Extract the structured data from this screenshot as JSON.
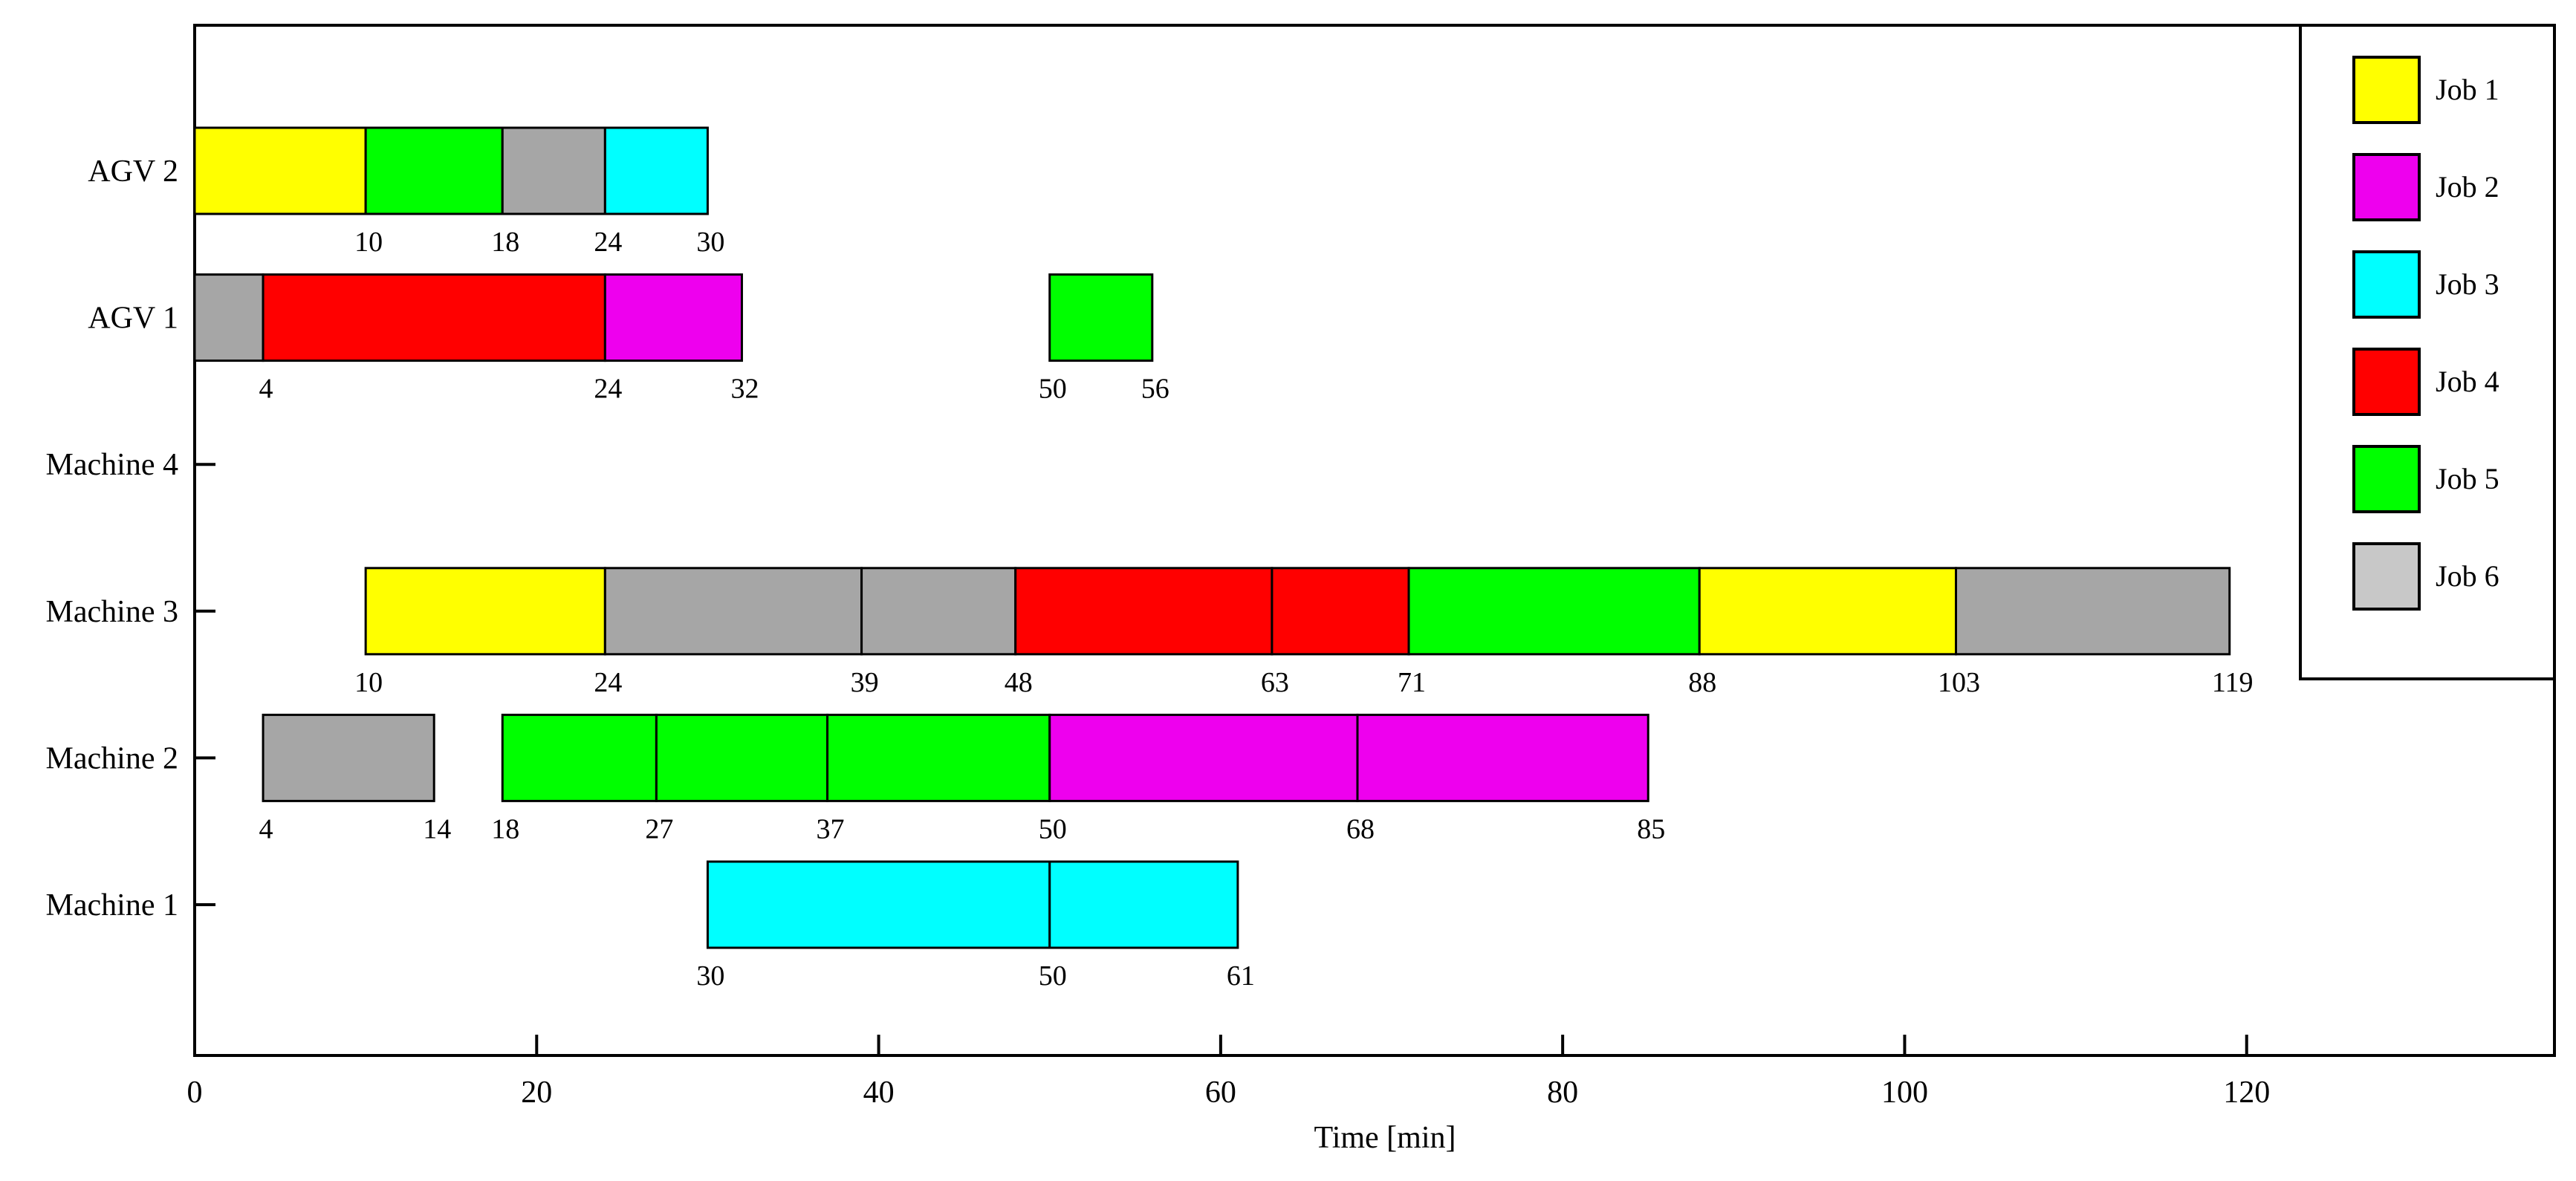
{
  "chart_data": {
    "type": "gantt",
    "title": "",
    "xlabel": "Time [min]",
    "ylabel": "",
    "xlim": [
      0,
      138
    ],
    "xticks": [
      0,
      20,
      40,
      60,
      80,
      100,
      120
    ],
    "grid": false,
    "legend_placement": "top-right",
    "rows": [
      "Machine 1",
      "Machine 2",
      "Machine 3",
      "Machine 4",
      "AGV 1",
      "AGV 2"
    ],
    "jobs": [
      {
        "name": "Job 1",
        "color": "#ffff00"
      },
      {
        "name": "Job 2",
        "color": "#ee00ee"
      },
      {
        "name": "Job 3",
        "color": "#00ffff"
      },
      {
        "name": "Job 4",
        "color": "#ff0000"
      },
      {
        "name": "Job 5",
        "color": "#00ff00"
      },
      {
        "name": "Job 6",
        "color": "#c8c8c8"
      }
    ],
    "bar_colors": {
      "Job 1": "#ffff00",
      "Job 2": "#ee00ee",
      "Job 3": "#00ffff",
      "Job 4": "#ff0000",
      "Job 5": "#00ff00",
      "Job 6": "#a6a6a6"
    },
    "tasks": [
      {
        "row": "AGV 2",
        "job": "Job 1",
        "start": 0,
        "end": 10
      },
      {
        "row": "AGV 2",
        "job": "Job 5",
        "start": 10,
        "end": 18
      },
      {
        "row": "AGV 2",
        "job": "Job 6",
        "start": 18,
        "end": 24
      },
      {
        "row": "AGV 2",
        "job": "Job 3",
        "start": 24,
        "end": 30
      },
      {
        "row": "AGV 1",
        "job": "Job 6",
        "start": 0,
        "end": 4
      },
      {
        "row": "AGV 1",
        "job": "Job 4",
        "start": 4,
        "end": 24
      },
      {
        "row": "AGV 1",
        "job": "Job 2",
        "start": 24,
        "end": 32
      },
      {
        "row": "AGV 1",
        "job": "Job 5",
        "start": 50,
        "end": 56
      },
      {
        "row": "Machine 3",
        "job": "Job 1",
        "start": 10,
        "end": 24
      },
      {
        "row": "Machine 3",
        "job": "Job 6",
        "start": 24,
        "end": 39
      },
      {
        "row": "Machine 3",
        "job": "Job 6",
        "start": 39,
        "end": 48
      },
      {
        "row": "Machine 3",
        "job": "Job 4",
        "start": 48,
        "end": 63
      },
      {
        "row": "Machine 3",
        "job": "Job 4",
        "start": 63,
        "end": 71
      },
      {
        "row": "Machine 3",
        "job": "Job 5",
        "start": 71,
        "end": 88
      },
      {
        "row": "Machine 3",
        "job": "Job 1",
        "start": 88,
        "end": 103
      },
      {
        "row": "Machine 3",
        "job": "Job 6",
        "start": 103,
        "end": 119
      },
      {
        "row": "Machine 2",
        "job": "Job 6",
        "start": 4,
        "end": 14
      },
      {
        "row": "Machine 2",
        "job": "Job 5",
        "start": 18,
        "end": 27
      },
      {
        "row": "Machine 2",
        "job": "Job 5",
        "start": 27,
        "end": 37
      },
      {
        "row": "Machine 2",
        "job": "Job 5",
        "start": 37,
        "end": 50
      },
      {
        "row": "Machine 2",
        "job": "Job 2",
        "start": 50,
        "end": 68
      },
      {
        "row": "Machine 2",
        "job": "Job 2",
        "start": 68,
        "end": 85
      },
      {
        "row": "Machine 1",
        "job": "Job 3",
        "start": 30,
        "end": 50
      },
      {
        "row": "Machine 1",
        "job": "Job 3",
        "start": 50,
        "end": 61
      }
    ],
    "time_labels": [
      {
        "row": "AGV 2",
        "values": [
          10,
          18,
          24,
          30
        ]
      },
      {
        "row": "AGV 1",
        "values": [
          4,
          24,
          32,
          50,
          56
        ]
      },
      {
        "row": "Machine 3",
        "values": [
          10,
          24,
          39,
          48,
          63,
          71,
          88,
          103,
          119
        ]
      },
      {
        "row": "Machine 2",
        "values": [
          4,
          14,
          18,
          27,
          37,
          50,
          68,
          85
        ]
      },
      {
        "row": "Machine 1",
        "values": [
          30,
          50,
          61
        ]
      }
    ]
  }
}
